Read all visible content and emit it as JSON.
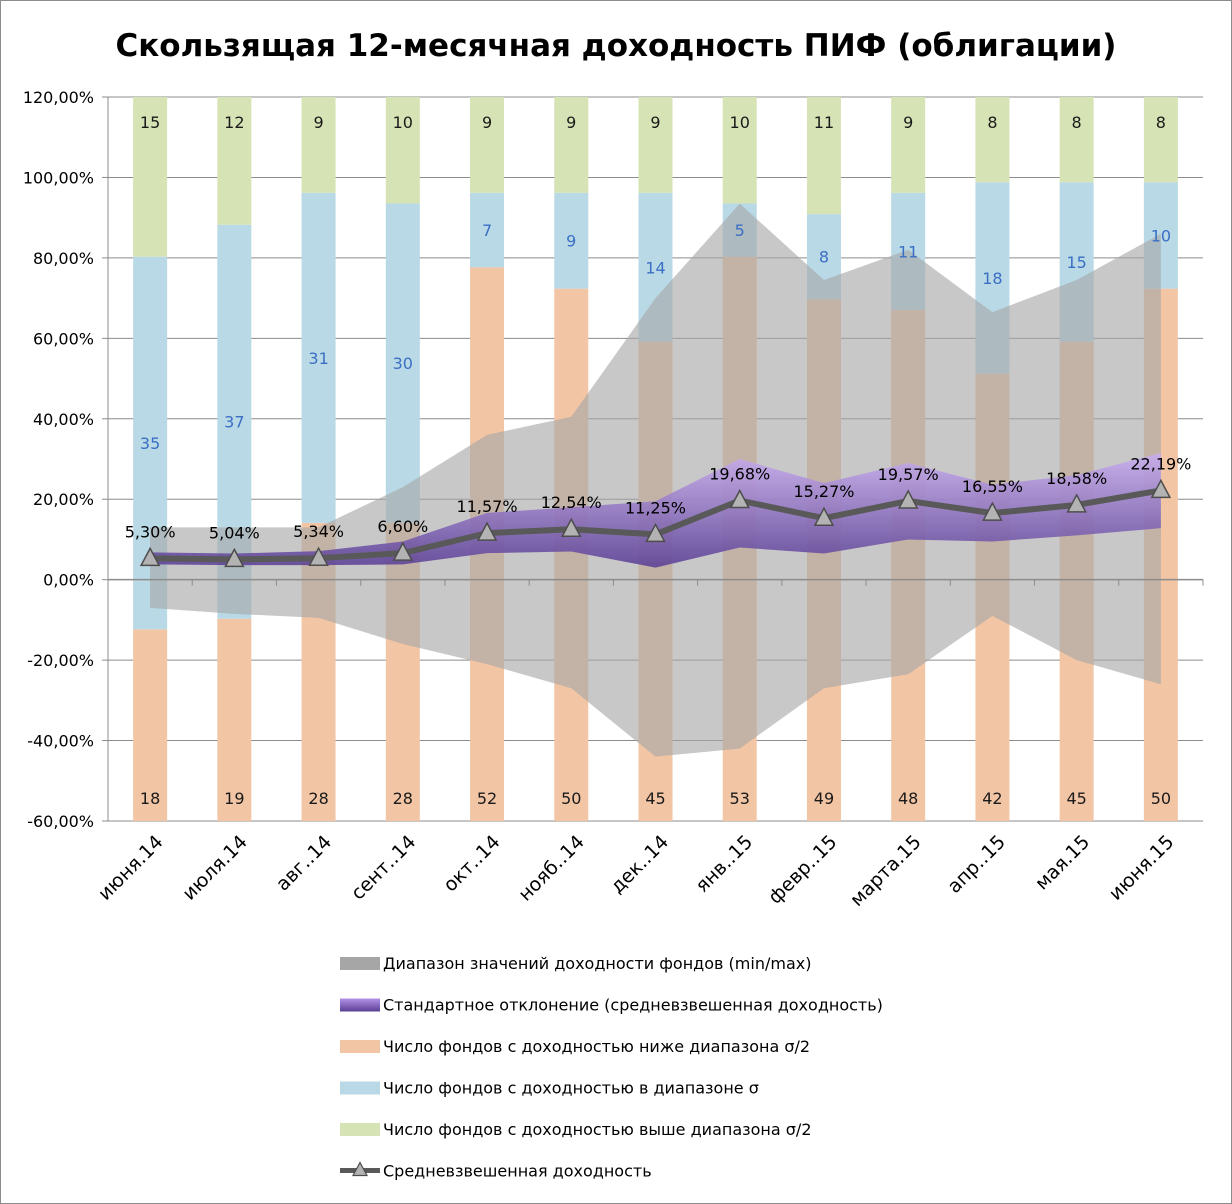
{
  "chart_data": {
    "type": "line",
    "title": "Скользящая 12-месячная доходность ПИФ (облигации)",
    "categories": [
      "июня.14",
      "июля.14",
      "авг..14",
      "сент..14",
      "окт..14",
      "нояб..14",
      "дек..14",
      "янв..15",
      "февр..15",
      "марта.15",
      "апр..15",
      "мая.15",
      "июня.15"
    ],
    "ylim": [
      -60,
      120
    ],
    "yticks": [
      "120,00%",
      "100,00%",
      "80,00%",
      "60,00%",
      "40,00%",
      "20,00%",
      "0,00%",
      "-20,00%",
      "-40,00%",
      "-60,00%"
    ],
    "grid": true,
    "legend_position": "bottom",
    "series": [
      {
        "name": "Диапазон значений доходности фондов (min/max)",
        "kind": "range",
        "color": "#a6a6a6",
        "min": [
          -7,
          -8.5,
          -9.5,
          -16,
          -21,
          -27,
          -44,
          -42,
          -27,
          -23.5,
          -9,
          -20,
          -26
        ],
        "max": [
          13,
          13,
          13,
          23,
          36,
          40.5,
          70,
          93.5,
          74.5,
          82,
          66.5,
          74.5,
          86
        ]
      },
      {
        "name": "Стандартное отклонение (средневзвешенная доходность)",
        "kind": "band",
        "color": "#7f5fb0",
        "lower": [
          3.8,
          3.6,
          3.6,
          3.8,
          6.6,
          7,
          3,
          8,
          6.5,
          10,
          9.5,
          11,
          12.8
        ],
        "upper": [
          6.8,
          6.5,
          7.1,
          9.5,
          16.6,
          18,
          19.5,
          30,
          24,
          29,
          23.6,
          26,
          31.5
        ]
      },
      {
        "name": "Число фондов с доходностью ниже диапазона σ/2",
        "kind": "stacked-bar",
        "color": "#f2c5a5",
        "label_color": "#1a1a1a",
        "values": [
          18,
          19,
          28,
          28,
          52,
          50,
          45,
          53,
          49,
          48,
          42,
          45,
          50
        ]
      },
      {
        "name": "Число фондов с доходностью в диапазоне σ",
        "kind": "stacked-bar",
        "color": "#b9d9e6",
        "label_color": "#3b6fc4",
        "values": [
          35,
          37,
          31,
          30,
          7,
          9,
          14,
          5,
          8,
          11,
          18,
          15,
          10
        ]
      },
      {
        "name": "Число фондов с доходностью выше диапазона σ/2",
        "kind": "stacked-bar",
        "color": "#d5e3b5",
        "label_color": "#1a1a1a",
        "values": [
          15,
          12,
          9,
          10,
          9,
          9,
          9,
          10,
          11,
          9,
          8,
          8,
          8
        ]
      },
      {
        "name": "Средневзвешенная доходность",
        "kind": "line",
        "color": "#595959",
        "values": [
          5.3,
          5.04,
          5.34,
          6.6,
          11.57,
          12.54,
          11.25,
          19.68,
          15.27,
          19.57,
          16.55,
          18.58,
          22.19
        ],
        "labels": [
          "5,30%",
          "5,04%",
          "5,34%",
          "6,60%",
          "11,57%",
          "12,54%",
          "11,25%",
          "19,68%",
          "15,27%",
          "19,57%",
          "16,55%",
          "18,58%",
          "22,19%"
        ]
      }
    ]
  }
}
